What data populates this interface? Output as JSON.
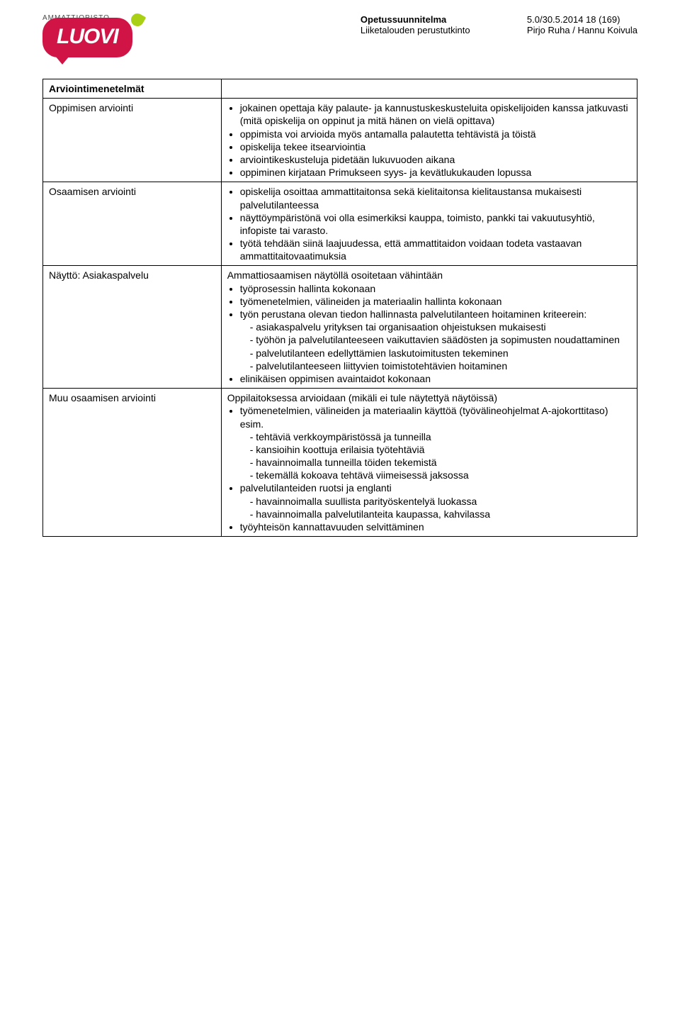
{
  "header": {
    "top_label": "AMMATTIOPISTO",
    "logo_text": "LUOVI",
    "right_left_line1": "Opetussuunnitelma",
    "right_left_line2": "Liiketalouden perustutkinto",
    "right_right_line1": "5.0/30.5.2014    18 (169)",
    "right_right_line2": "Pirjo Ruha / Hannu Koivula"
  },
  "table": {
    "heading": "Arviointimenetelmät",
    "rows": [
      {
        "label": "Oppimisen arviointi",
        "bullets": [
          "jokainen opettaja käy palaute- ja kannustuskeskusteluita opiskelijoiden kanssa jatkuvasti (mitä opiskelija on oppinut ja mitä hänen on vielä opittava)",
          "oppimista voi arvioida myös antamalla palautetta tehtävistä ja töistä",
          "opiskelija tekee itsearviointia",
          "arviointikeskusteluja pidetään lukuvuoden aikana",
          "oppiminen kirjataan Primukseen syys- ja kevätlukukauden lopussa"
        ]
      },
      {
        "label": "Osaamisen arviointi",
        "bullets": [
          "opiskelija osoittaa ammattitaitonsa sekä kielitaitonsa kielitaustansa mukaisesti palvelutilanteessa",
          "näyttöympäristönä voi olla esimerkiksi kauppa, toimisto, pankki tai vakuutusyhtiö, infopiste tai varasto.",
          "työtä tehdään siinä laajuudessa, että ammattitaidon voidaan todeta vastaavan ammattitaitovaatimuksia"
        ]
      },
      {
        "label": "Näyttö: Asiakaspalvelu",
        "intro": "Ammattiosaamisen näytöllä osoitetaan vähintään",
        "bullets": [
          "työprosessin hallinta kokonaan",
          "työmenetelmien, välineiden ja materiaalin hallinta kokonaan"
        ],
        "nested_bullet": "työn perustana olevan tiedon hallinnasta palvelutilanteen hoitaminen kriteerein:",
        "nested_dashes": [
          "asiakaspalvelu yrityksen tai organisaation ohjeistuksen mukaisesti",
          "työhön ja palvelutilanteeseen vaikuttavien säädösten ja sopimusten noudattaminen",
          "palvelutilanteen edellyttämien laskutoimitusten tekeminen",
          "palvelutilanteeseen liittyvien toimistotehtävien hoitaminen"
        ],
        "trailing_bullet": "elinikäisen oppimisen avaintaidot kokonaan"
      },
      {
        "label": "Muu osaamisen arviointi",
        "intro": "Oppilaitoksessa arvioidaan (mikäli ei tule näytettyä näytöissä)",
        "group1_bullet": "työmenetelmien, välineiden ja materiaalin käyttöä (työvälineohjelmat A-ajokorttitaso) esim.",
        "group1_dashes": [
          "tehtäviä verkkoympäristössä ja tunneilla",
          "kansioihin koottuja erilaisia työtehtäviä",
          "havainnoimalla tunneilla töiden tekemistä",
          "tekemällä kokoava tehtävä viimeisessä jaksossa"
        ],
        "group2_bullet": "palvelutilanteiden ruotsi ja englanti",
        "group2_dashes": [
          "havainnoimalla suullista parityöskentelyä luokassa",
          "havainnoimalla palvelutilanteita kaupassa, kahvilassa"
        ],
        "trailing_bullet": "työyhteisön kannattavuuden selvittäminen"
      }
    ]
  },
  "colors": {
    "accent": "#d01446",
    "leaf": "#aad016",
    "text": "#000000",
    "border": "#000000"
  }
}
